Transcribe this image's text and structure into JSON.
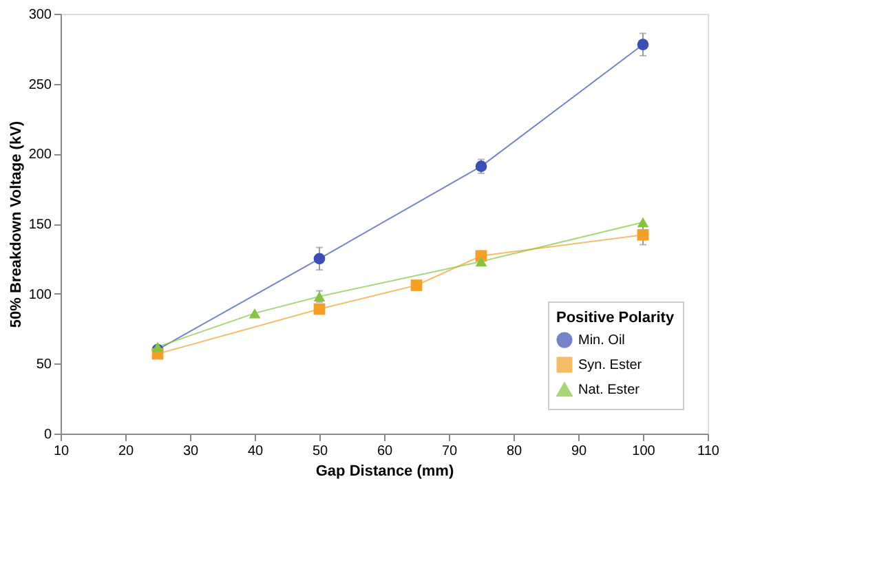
{
  "chart_data": {
    "type": "line",
    "xlabel": "Gap Distance (mm)",
    "ylabel": "50% Breakdown Voltage (kV)",
    "legend_title": "Positive Polarity",
    "xlim": [
      10,
      110
    ],
    "xticks": [
      10,
      20,
      30,
      40,
      50,
      60,
      70,
      80,
      90,
      100,
      110
    ],
    "ylim": [
      0,
      300
    ],
    "yticks": [
      0,
      50,
      100,
      150,
      200,
      250,
      300
    ],
    "grid": false,
    "legend": "bottom right",
    "series": [
      {
        "name": "Min. Oil",
        "color": "#3a4fb4",
        "marker": "circle",
        "x": [
          25,
          50,
          75,
          100
        ],
        "values": [
          60,
          125,
          191,
          278
        ],
        "errors": [
          null,
          8,
          5,
          8
        ]
      },
      {
        "name": "Syn. Ester",
        "color": "#f5a028",
        "marker": "square",
        "x": [
          25,
          50,
          65,
          75,
          100
        ],
        "values": [
          57,
          89,
          106,
          127,
          142
        ],
        "errors": [
          null,
          null,
          null,
          null,
          7
        ]
      },
      {
        "name": "Nat. Ester",
        "color": "#86c440",
        "marker": "triangle",
        "x": [
          25,
          40,
          50,
          75,
          100
        ],
        "values": [
          62,
          86,
          98,
          123,
          151
        ],
        "errors": [
          null,
          null,
          4,
          null,
          null
        ]
      }
    ]
  }
}
